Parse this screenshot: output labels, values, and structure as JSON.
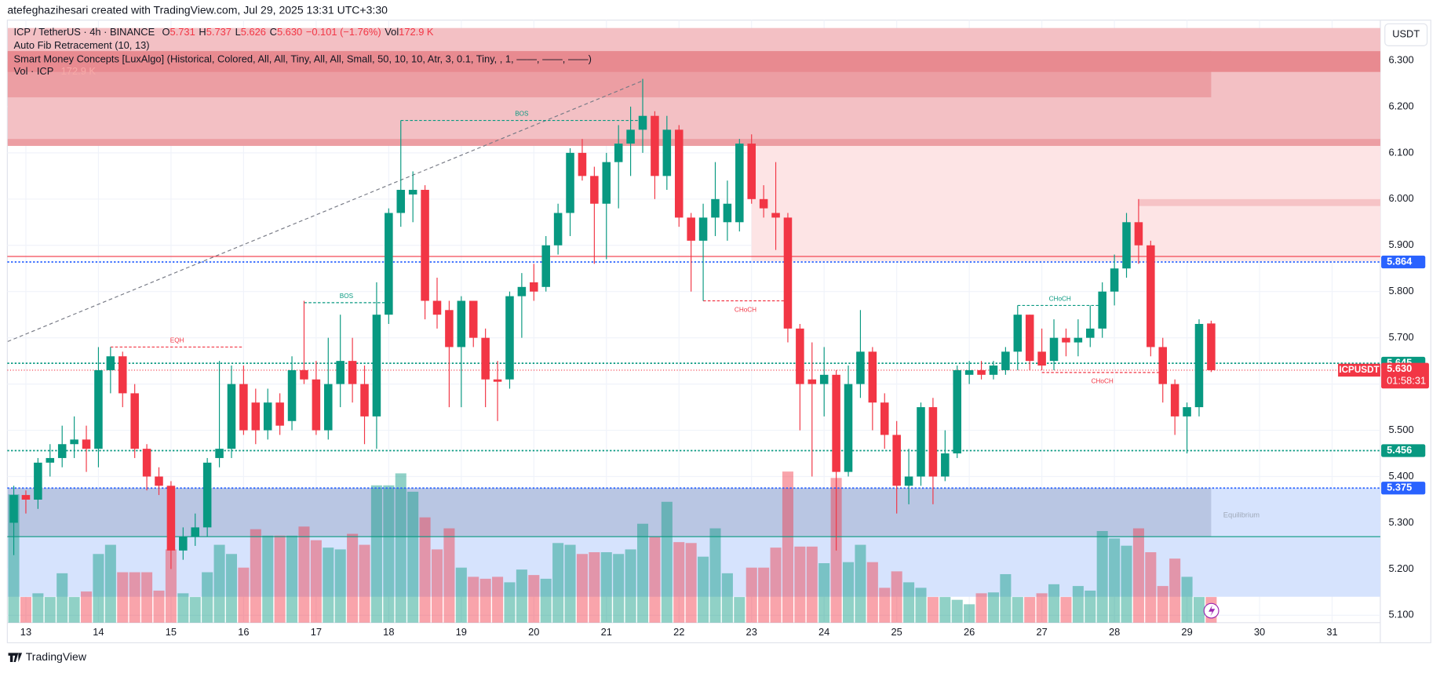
{
  "header": {
    "credit": "atefeghazihesari created with TradingView.com, Jul 29, 2025 13:31 UTC+3:30"
  },
  "legend": {
    "symbol": "ICP / TetherUS · 4h · BINANCE",
    "o_label": "O",
    "open": "5.731",
    "h_label": "H",
    "high": "5.737",
    "l_label": "L",
    "low": "5.626",
    "c_label": "C",
    "close": "5.630",
    "change": "−0.101 (−1.76%)",
    "vol_label": "Vol",
    "vol": "172.9 K",
    "indicators": [
      "Auto Fib Retracement (10, 13)",
      "Smart Money Concepts [LuxAlgo] (Historical, Colored, All, All, Tiny, All, All, Small, 50, 10, 10, Atr, 3, 0.1, Tiny, , 1, ——, ——, ——)"
    ],
    "vol_indicator": "Vol · ICP",
    "vol_indicator_value": "172.9 K"
  },
  "chart_data": {
    "type": "candlestick",
    "currency": "USDT",
    "up_color": "#089981",
    "down_color": "#f23645",
    "categories": [
      null,
      "13",
      null,
      null,
      null,
      null,
      null,
      "14",
      null,
      null,
      null,
      null,
      null,
      "15",
      null,
      null,
      null,
      null,
      null,
      "16",
      null,
      null,
      null,
      null,
      null,
      "17",
      null,
      null,
      null,
      null,
      null,
      "18",
      null,
      null,
      null,
      null,
      null,
      "19",
      null,
      null,
      null,
      null,
      null,
      "20",
      null,
      null,
      null,
      null,
      null,
      "21",
      null,
      null,
      null,
      null,
      null,
      "22",
      null,
      null,
      null,
      null,
      null,
      "23",
      null,
      null,
      null,
      null,
      null,
      "24",
      null,
      null,
      null,
      null,
      null,
      "25",
      null,
      null,
      null,
      null,
      null,
      "26",
      null,
      null,
      null,
      null,
      null,
      "27",
      null,
      null,
      null,
      null,
      null,
      "28",
      null,
      null,
      null,
      null,
      null,
      "29",
      null,
      null,
      null,
      null,
      null,
      "30",
      null,
      null,
      null,
      null,
      null,
      "31",
      null,
      null,
      null,
      null,
      null
    ],
    "open": [
      5.3,
      5.36,
      5.35,
      5.43,
      5.44,
      5.47,
      5.48,
      5.46,
      5.63,
      5.66,
      5.58,
      5.46,
      5.4,
      5.38,
      5.24,
      5.27,
      5.29,
      5.44,
      5.46,
      5.6,
      5.56,
      5.5,
      5.56,
      5.52,
      5.63,
      5.61,
      5.5,
      5.6,
      5.65,
      5.6,
      5.53,
      5.75,
      5.97,
      6.01,
      6.02,
      5.78,
      5.76,
      5.68,
      5.78,
      5.7,
      5.61,
      5.61,
      5.79,
      5.82,
      5.81,
      5.9,
      5.97,
      6.1,
      6.05,
      5.99,
      6.08,
      6.12,
      6.15,
      6.18,
      6.05,
      6.15,
      5.96,
      5.91,
      5.96,
      5.95,
      5.95,
      6.12,
      6.0,
      5.97,
      5.96,
      5.72,
      5.61,
      5.6,
      5.62,
      5.41,
      5.6,
      5.67,
      5.56,
      5.49,
      5.38,
      5.4,
      5.55,
      5.4,
      5.45,
      5.62,
      5.63,
      5.62,
      5.63,
      5.67,
      5.75,
      5.67,
      5.65,
      5.7,
      5.69,
      5.7,
      5.72,
      5.8,
      5.85,
      5.95,
      5.9,
      5.68,
      5.6,
      5.53,
      5.55,
      5.731,
      null,
      null,
      null,
      null,
      null,
      null,
      null,
      null,
      null,
      null,
      null,
      null,
      null,
      null,
      null
    ],
    "high": [
      5.38,
      5.37,
      5.44,
      5.47,
      5.51,
      5.53,
      5.51,
      5.68,
      5.68,
      5.67,
      5.6,
      5.47,
      5.42,
      5.39,
      5.29,
      5.32,
      5.44,
      5.65,
      5.64,
      5.64,
      5.59,
      5.59,
      5.58,
      5.66,
      5.78,
      5.65,
      5.7,
      5.75,
      5.7,
      5.64,
      5.82,
      5.98,
      6.17,
      6.06,
      6.03,
      5.83,
      5.78,
      5.79,
      5.78,
      5.72,
      5.65,
      5.8,
      5.84,
      5.86,
      5.92,
      5.99,
      6.11,
      6.13,
      6.07,
      6.1,
      6.16,
      6.2,
      6.26,
      6.19,
      6.18,
      6.16,
      5.97,
      5.99,
      6.08,
      6.04,
      6.13,
      6.14,
      6.03,
      6.08,
      5.97,
      5.73,
      5.69,
      5.68,
      5.63,
      5.64,
      5.76,
      5.68,
      5.58,
      5.52,
      5.46,
      5.56,
      5.57,
      5.5,
      5.64,
      5.65,
      5.65,
      5.65,
      5.68,
      5.77,
      5.75,
      5.72,
      5.74,
      5.72,
      5.74,
      5.77,
      5.82,
      5.88,
      5.97,
      6.0,
      5.91,
      5.7,
      5.61,
      5.56,
      5.74,
      5.737,
      null,
      null,
      null,
      null,
      null,
      null,
      null,
      null,
      null,
      null,
      null,
      null,
      null,
      null,
      null
    ],
    "low": [
      5.23,
      5.32,
      5.33,
      5.4,
      5.42,
      5.44,
      5.41,
      5.42,
      5.58,
      5.55,
      5.44,
      5.37,
      5.36,
      5.2,
      5.22,
      5.25,
      5.27,
      5.42,
      5.44,
      5.49,
      5.47,
      5.48,
      5.49,
      5.5,
      5.6,
      5.49,
      5.48,
      5.55,
      5.56,
      5.47,
      5.46,
      5.73,
      5.94,
      5.95,
      5.74,
      5.72,
      5.55,
      5.55,
      5.68,
      5.55,
      5.52,
      5.59,
      5.7,
      5.78,
      5.8,
      5.88,
      5.92,
      6.04,
      5.86,
      5.87,
      5.98,
      6.05,
      6.1,
      6.0,
      6.02,
      5.94,
      5.8,
      5.78,
      5.92,
      5.91,
      5.93,
      5.99,
      5.96,
      5.89,
      5.69,
      5.5,
      5.4,
      5.53,
      5.24,
      5.4,
      5.57,
      5.5,
      5.46,
      5.32,
      5.34,
      5.38,
      5.34,
      5.39,
      5.44,
      5.6,
      5.61,
      5.61,
      5.62,
      5.63,
      5.63,
      5.63,
      5.63,
      5.66,
      5.66,
      5.68,
      5.7,
      5.77,
      5.83,
      5.86,
      5.66,
      5.56,
      5.49,
      5.45,
      5.53,
      5.626,
      null,
      null,
      null,
      null,
      null,
      null,
      null,
      null,
      null,
      null,
      null,
      null,
      null,
      null,
      null
    ],
    "close": [
      5.36,
      5.35,
      5.43,
      5.44,
      5.47,
      5.48,
      5.46,
      5.63,
      5.66,
      5.58,
      5.46,
      5.4,
      5.38,
      5.24,
      5.27,
      5.29,
      5.43,
      5.46,
      5.6,
      5.5,
      5.5,
      5.56,
      5.51,
      5.63,
      5.61,
      5.5,
      5.6,
      5.65,
      5.6,
      5.53,
      5.75,
      5.97,
      6.02,
      6.02,
      5.78,
      5.75,
      5.68,
      5.78,
      5.7,
      5.61,
      5.605,
      5.79,
      5.81,
      5.8,
      5.9,
      5.97,
      6.1,
      6.05,
      5.99,
      6.08,
      6.12,
      6.15,
      6.18,
      6.05,
      6.15,
      5.96,
      5.91,
      5.96,
      6.0,
      5.99,
      6.12,
      6.0,
      5.98,
      5.96,
      5.72,
      5.6,
      5.6,
      5.62,
      5.41,
      5.6,
      5.67,
      5.56,
      5.49,
      5.38,
      5.4,
      5.55,
      5.4,
      5.45,
      5.63,
      5.63,
      5.62,
      5.64,
      5.67,
      5.75,
      5.65,
      5.64,
      5.7,
      5.69,
      5.7,
      5.72,
      5.8,
      5.85,
      5.95,
      5.9,
      5.68,
      5.6,
      5.53,
      5.55,
      5.73,
      5.63,
      null,
      null,
      null,
      null,
      null,
      null,
      null,
      null,
      null,
      null,
      null,
      null,
      null,
      null,
      null
    ],
    "volume": [
      865,
      173,
      198,
      173,
      333,
      173,
      210,
      463,
      525,
      340,
      340,
      340,
      216,
      494,
      198,
      173,
      340,
      525,
      463,
      371,
      630,
      587,
      587,
      587,
      648,
      556,
      506,
      494,
      599,
      525,
      926,
      926,
      1007,
      883,
      710,
      494,
      636,
      371,
      309,
      296,
      309,
      272,
      358,
      321,
      296,
      537,
      525,
      463,
      475,
      475,
      463,
      494,
      667,
      580,
      815,
      543,
      537,
      445,
      636,
      333,
      173,
      371,
      371,
      506,
      1019,
      513,
      513,
      401,
      976,
      408,
      525,
      408,
      235,
      346,
      272,
      235,
      173,
      173,
      154,
      124,
      198,
      204,
      327,
      173,
      173,
      198,
      259,
      173,
      247,
      216,
      618,
      568,
      519,
      636,
      475,
      247,
      432,
      309,
      173,
      172.9,
      null,
      null,
      null,
      null,
      null,
      null,
      null,
      null,
      null,
      null,
      null,
      null,
      null,
      null,
      null
    ],
    "ylim": [
      5.084,
      6.387
    ],
    "yticks": [
      {
        "value": 5.1,
        "label": "5.100"
      },
      {
        "value": 5.2,
        "label": "5.200"
      },
      {
        "value": 5.3,
        "label": "5.300"
      },
      {
        "value": 5.4,
        "label": "5.400"
      },
      {
        "value": 5.5,
        "label": "5.500"
      },
      {
        "value": 5.6,
        "label": "5.600"
      },
      {
        "value": 5.7,
        "label": "5.700"
      },
      {
        "value": 5.8,
        "label": "5.800"
      },
      {
        "value": 5.9,
        "label": "5.900"
      },
      {
        "value": 6.0,
        "label": "6.000"
      },
      {
        "value": 6.1,
        "label": "6.100"
      },
      {
        "value": 6.2,
        "label": "6.200"
      },
      {
        "value": 6.3,
        "label": "6.300"
      }
    ],
    "zones": [
      {
        "x": [
          -0.5,
          113
        ],
        "y": [
          6.118,
          6.37
        ],
        "color": "#f3c0c4"
      },
      {
        "x": [
          61,
          113
        ],
        "y": [
          5.866,
          6.118
        ],
        "color": "#fde4e5"
      },
      {
        "x": [
          -0.5,
          113
        ],
        "y": [
          6.115,
          6.13
        ],
        "color": "#ec9ea3"
      },
      {
        "x": [
          93,
          113
        ],
        "y": [
          5.985,
          6.0
        ],
        "color": "#f6c3c6"
      },
      {
        "x": [
          -0.5,
          99
        ],
        "y": [
          6.22,
          6.32
        ],
        "color": "#ec9ea3"
      },
      {
        "x": [
          -0.5,
          113
        ],
        "y": [
          6.275,
          6.32
        ],
        "color": "#e88a90"
      },
      {
        "x": [
          -0.5,
          113
        ],
        "y": [
          5.14,
          5.375
        ],
        "color": "#d6e3fd"
      },
      {
        "x": [
          -0.5,
          99
        ],
        "y": [
          5.27,
          5.375
        ],
        "color": "#b9c6e3"
      }
    ],
    "equilibrium": {
      "text": "Equilibrium",
      "x": 100,
      "y": 5.316
    },
    "lines": [
      {
        "value": 5.876,
        "color": "#f23645"
      },
      {
        "value": 5.27,
        "color": "#089981"
      }
    ],
    "levels": [
      {
        "value": 5.864,
        "color": "#2962ff"
      },
      {
        "value": 5.645,
        "color": "#089981"
      },
      {
        "value": 5.456,
        "color": "#089981"
      },
      {
        "value": 5.375,
        "color": "#2962ff"
      }
    ],
    "current": {
      "value": 5.63,
      "label": "5.630",
      "symbol": "ICPUSDT",
      "countdown": "01:58:31",
      "color": "#f23645"
    },
    "fib_line": {
      "x": [
        -0.5,
        52
      ],
      "y": [
        5.692,
        6.256
      ]
    },
    "annotations": [
      {
        "text": "BOS",
        "price": 6.17,
        "x": [
          32,
          52
        ],
        "color": "#089981"
      },
      {
        "text": "BOS",
        "price": 5.776,
        "x": [
          24,
          31
        ],
        "color": "#089981"
      },
      {
        "text": "EQH",
        "price": 5.68,
        "x": [
          8,
          19
        ],
        "color": "#f23645"
      },
      {
        "text": "CHoCH",
        "price": 5.78,
        "x": [
          57,
          64
        ],
        "color": "#f23645"
      },
      {
        "text": "CHoCH",
        "price": 5.77,
        "x": [
          83,
          90
        ],
        "color": "#089981"
      },
      {
        "text": "CHoCH",
        "price": 5.625,
        "x": [
          85,
          95
        ],
        "color": "#f23645"
      }
    ]
  },
  "footer": {
    "brand": "TradingView"
  }
}
